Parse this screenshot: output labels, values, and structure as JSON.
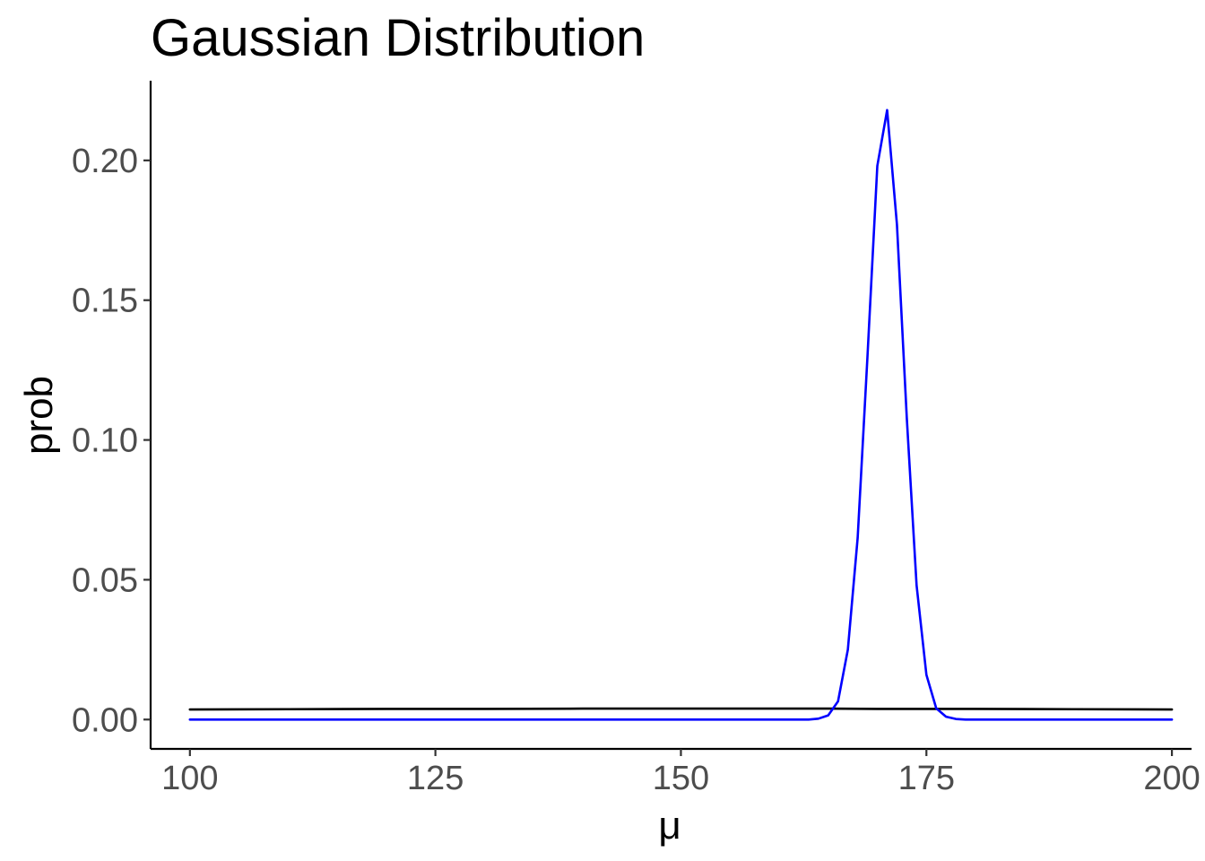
{
  "chart_data": {
    "type": "line",
    "title": "Gaussian Distribution",
    "xlabel": "μ",
    "ylabel": "prob",
    "xlim": [
      96,
      202
    ],
    "ylim": [
      -0.0105,
      0.2285
    ],
    "x_ticks": [
      100,
      125,
      150,
      175,
      200
    ],
    "x_tick_labels": [
      "100",
      "125",
      "150",
      "175",
      "200"
    ],
    "y_ticks": [
      0.0,
      0.05,
      0.1,
      0.15,
      0.2
    ],
    "y_tick_labels": [
      "0.00",
      "0.05",
      "0.10",
      "0.15",
      "0.20"
    ],
    "grid": false,
    "legend": "none",
    "series": [
      {
        "color": "#000000",
        "points": [
          [
            100,
            0.0036
          ],
          [
            110,
            0.0037
          ],
          [
            120,
            0.0038
          ],
          [
            130,
            0.0038
          ],
          [
            140,
            0.0039
          ],
          [
            150,
            0.0039
          ],
          [
            160,
            0.0039
          ],
          [
            165,
            0.0039
          ],
          [
            170,
            0.0038
          ],
          [
            180,
            0.0038
          ],
          [
            190,
            0.0037
          ],
          [
            200,
            0.0036
          ]
        ]
      },
      {
        "color": "#0000ff",
        "points": [
          [
            100,
            0.0
          ],
          [
            160,
            0.0
          ],
          [
            163,
            0.0
          ],
          [
            164,
            0.0003
          ],
          [
            165,
            0.0015
          ],
          [
            166,
            0.0065
          ],
          [
            167,
            0.025
          ],
          [
            168,
            0.065
          ],
          [
            169,
            0.13
          ],
          [
            170,
            0.198
          ],
          [
            171,
            0.218
          ],
          [
            172,
            0.177
          ],
          [
            173,
            0.108
          ],
          [
            174,
            0.048
          ],
          [
            175,
            0.016
          ],
          [
            176,
            0.004
          ],
          [
            177,
            0.001
          ],
          [
            178,
            0.0002
          ],
          [
            179,
            0.0
          ],
          [
            200,
            0.0
          ]
        ]
      }
    ]
  }
}
